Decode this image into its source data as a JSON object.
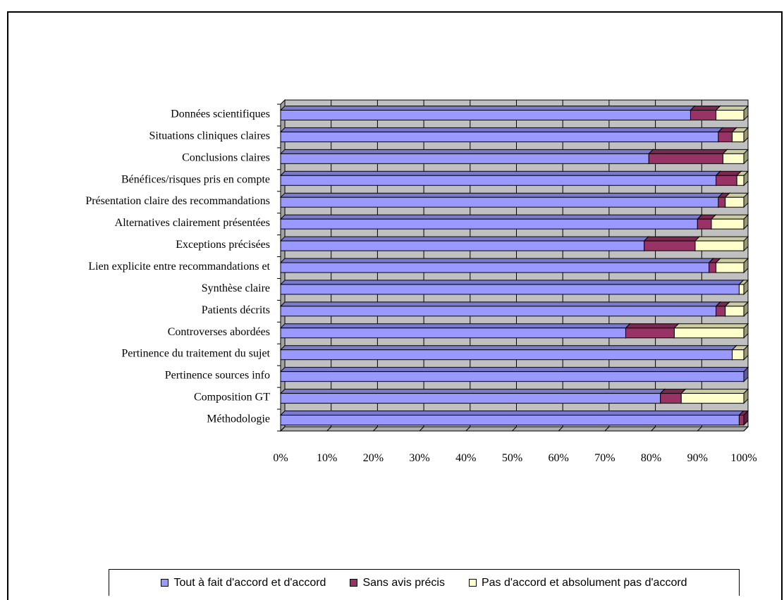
{
  "chart_data": {
    "type": "bar",
    "orientation": "horizontal",
    "stacked": "percent",
    "three_d": true,
    "title": "",
    "xlabel": "",
    "ylabel": "",
    "xlim": [
      0,
      100
    ],
    "x_tick_labels": [
      "0%",
      "10%",
      "20%",
      "30%",
      "40%",
      "50%",
      "60%",
      "70%",
      "80%",
      "90%",
      "100%"
    ],
    "grid": true,
    "legend_position": "bottom",
    "categories": [
      "Données scientifiques",
      "Situations cliniques claires",
      "Conclusions claires",
      "Bénéfices/risques pris en compte",
      "Présentation claire des recommandations",
      "Alternatives clairement présentées",
      "Exceptions précisées",
      "Lien explicite entre recommandations et",
      "Synthèse claire",
      "Patients décrits",
      "Controverses abordées",
      "Pertinence du traitement du sujet",
      "Pertinence sources info",
      "Composition GT",
      "Méthodologie"
    ],
    "series": [
      {
        "name": "Tout à fait d'accord et d'accord",
        "color": "#9999ff",
        "values": [
          88.5,
          94.5,
          79.5,
          94,
          94.5,
          90,
          78.5,
          92.5,
          99,
          94,
          74.5,
          97.5,
          100,
          82,
          99
        ]
      },
      {
        "name": "Sans avis précis",
        "color": "#993366",
        "values": [
          5.5,
          3,
          16,
          4.5,
          1.5,
          3,
          11,
          1.5,
          0,
          2,
          10.5,
          0,
          0,
          4.5,
          1
        ]
      },
      {
        "name": "Pas d'accord et absolument pas d'accord",
        "color": "#ffffcc",
        "values": [
          6,
          2.5,
          4.5,
          1.5,
          4,
          7,
          10.5,
          6,
          1,
          4,
          15,
          2.5,
          0,
          13.5,
          0
        ]
      }
    ]
  },
  "colors": {
    "plot_background": "#c0c0c0",
    "grid_line": "#000000",
    "frame": "#000000"
  }
}
